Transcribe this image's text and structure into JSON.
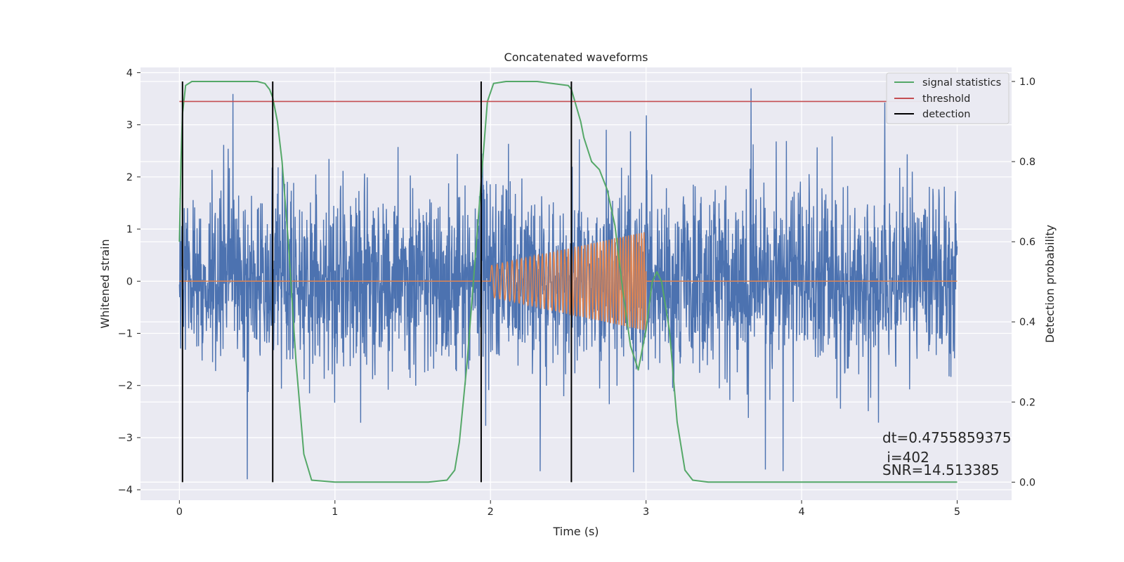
{
  "chart_data": {
    "type": "line",
    "title": "Concatenated waveforms",
    "xlabel": "Time (s)",
    "ylabel": "Whitened strain",
    "y2label": "Detection probability",
    "xlim": [
      -0.25,
      5.35
    ],
    "ylim": [
      -4.2,
      4.1
    ],
    "y2lim": [
      -0.045,
      1.035
    ],
    "x_ticks": [
      0,
      1,
      2,
      3,
      4,
      5
    ],
    "x_tick_labels": [
      "0",
      "1",
      "2",
      "3",
      "4",
      "5"
    ],
    "y_ticks": [
      -4,
      -3,
      -2,
      -1,
      0,
      1,
      2,
      3,
      4
    ],
    "y_tick_labels": [
      "−4",
      "−3",
      "−2",
      "−1",
      "0",
      "1",
      "2",
      "3",
      "4"
    ],
    "y2_ticks": [
      0.0,
      0.2,
      0.4,
      0.6,
      0.8,
      1.0
    ],
    "y2_tick_labels": [
      "0.0",
      "0.2",
      "0.4",
      "0.6",
      "0.8",
      "1.0"
    ],
    "grid": true,
    "legend_position": "top-right",
    "noise": {
      "x_range": [
        0,
        5
      ],
      "typical_amplitude": 2.0,
      "max": 3.7,
      "min": -3.8,
      "color": "#4c72b0"
    },
    "injected_signal": {
      "x_start": 2.0,
      "x_end": 3.0,
      "amplitude_start": 0.3,
      "amplitude_end": 0.95,
      "color": "#dd8452"
    },
    "series": [
      {
        "name": "signal statistics",
        "axis": "right",
        "color": "#55a868",
        "x": [
          0.0,
          0.01,
          0.02,
          0.04,
          0.08,
          0.15,
          0.3,
          0.5,
          0.55,
          0.58,
          0.6,
          0.63,
          0.66,
          0.7,
          0.75,
          0.8,
          0.85,
          1.0,
          1.3,
          1.6,
          1.72,
          1.77,
          1.8,
          1.85,
          1.9,
          1.95,
          1.98,
          2.02,
          2.1,
          2.3,
          2.5,
          2.52,
          2.55,
          2.58,
          2.6,
          2.65,
          2.7,
          2.75,
          2.8,
          2.85,
          2.9,
          2.95,
          3.0,
          3.04,
          3.07,
          3.1,
          3.15,
          3.2,
          3.25,
          3.3,
          3.4,
          4.0,
          5.0
        ],
        "y": [
          0.6,
          0.8,
          0.92,
          0.99,
          1.0,
          1.0,
          1.0,
          1.0,
          0.995,
          0.98,
          0.96,
          0.9,
          0.8,
          0.6,
          0.3,
          0.07,
          0.005,
          0.0,
          0.0,
          0.0,
          0.005,
          0.03,
          0.1,
          0.3,
          0.55,
          0.8,
          0.95,
          0.995,
          1.0,
          1.0,
          0.99,
          0.98,
          0.94,
          0.9,
          0.86,
          0.8,
          0.78,
          0.73,
          0.64,
          0.48,
          0.34,
          0.28,
          0.38,
          0.5,
          0.525,
          0.5,
          0.38,
          0.15,
          0.03,
          0.005,
          0.0,
          0.0,
          0.0
        ]
      },
      {
        "name": "threshold",
        "axis": "right",
        "color": "#c44e52",
        "x": [
          0.0,
          5.0
        ],
        "y": [
          0.95,
          0.95
        ]
      },
      {
        "name": "detection",
        "axis": "right",
        "color": "#000000",
        "lines_x": [
          0.02,
          0.6,
          1.94,
          2.52
        ],
        "y_range": [
          0.0,
          1.0
        ]
      }
    ],
    "annotations": [
      "dt=0.4755859375",
      " i=402",
      "SNR=14.513385"
    ]
  }
}
